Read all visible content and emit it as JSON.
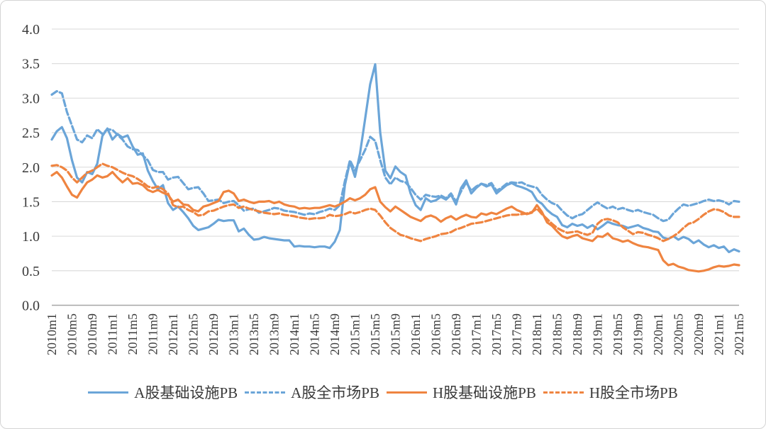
{
  "chart_data": {
    "type": "line",
    "title": "",
    "xlabel": "",
    "ylabel": "",
    "grid": true,
    "legend_position": "bottom",
    "x_tick_every": 4,
    "y_axis": {
      "min": 0.0,
      "max": 4.0,
      "step": 0.5
    },
    "y_tick_labels": [
      "0.0",
      "0.5",
      "1.0",
      "1.5",
      "2.0",
      "2.5",
      "3.0",
      "3.5",
      "4.0"
    ],
    "visible_x_ticks": [
      "2010m1",
      "2010m5",
      "2010m9",
      "2011m1",
      "2011m5",
      "2011m9",
      "2012m1",
      "2012m5",
      "2012m9",
      "2013m1",
      "2013m5",
      "2013m9",
      "2014m1",
      "2014m5",
      "2014m9",
      "2015m1",
      "2015m5",
      "2015m9",
      "2016m1",
      "2016m5",
      "2016m9",
      "2017m1",
      "2017m5",
      "2017m9",
      "2018m1",
      "2018m5",
      "2018m9",
      "2019m1",
      "2019m5",
      "2019m9",
      "2020m1",
      "2020m5",
      "2020m9",
      "2021m1",
      "2021m5"
    ],
    "categories": [
      "2010m1",
      "2010m2",
      "2010m3",
      "2010m4",
      "2010m5",
      "2010m6",
      "2010m7",
      "2010m8",
      "2010m9",
      "2010m10",
      "2010m11",
      "2010m12",
      "2011m1",
      "2011m2",
      "2011m3",
      "2011m4",
      "2011m5",
      "2011m6",
      "2011m7",
      "2011m8",
      "2011m9",
      "2011m10",
      "2011m11",
      "2011m12",
      "2012m1",
      "2012m2",
      "2012m3",
      "2012m4",
      "2012m5",
      "2012m6",
      "2012m7",
      "2012m8",
      "2012m9",
      "2012m10",
      "2012m11",
      "2012m12",
      "2013m1",
      "2013m2",
      "2013m3",
      "2013m4",
      "2013m5",
      "2013m6",
      "2013m7",
      "2013m8",
      "2013m9",
      "2013m10",
      "2013m11",
      "2013m12",
      "2014m1",
      "2014m2",
      "2014m3",
      "2014m4",
      "2014m5",
      "2014m6",
      "2014m7",
      "2014m8",
      "2014m9",
      "2014m10",
      "2014m11",
      "2014m12",
      "2015m1",
      "2015m2",
      "2015m3",
      "2015m4",
      "2015m5",
      "2015m6",
      "2015m7",
      "2015m8",
      "2015m9",
      "2015m10",
      "2015m11",
      "2015m12",
      "2016m1",
      "2016m2",
      "2016m3",
      "2016m4",
      "2016m5",
      "2016m6",
      "2016m7",
      "2016m8",
      "2016m9",
      "2016m10",
      "2016m11",
      "2016m12",
      "2017m1",
      "2017m2",
      "2017m3",
      "2017m4",
      "2017m5",
      "2017m6",
      "2017m7",
      "2017m8",
      "2017m9",
      "2017m10",
      "2017m11",
      "2017m12",
      "2018m1",
      "2018m2",
      "2018m3",
      "2018m4",
      "2018m5",
      "2018m6",
      "2018m7",
      "2018m8",
      "2018m9",
      "2018m10",
      "2018m11",
      "2018m12",
      "2019m1",
      "2019m2",
      "2019m3",
      "2019m4",
      "2019m5",
      "2019m6",
      "2019m7",
      "2019m8",
      "2019m9",
      "2019m10",
      "2019m11",
      "2019m12",
      "2020m1",
      "2020m2",
      "2020m3",
      "2020m4",
      "2020m5",
      "2020m6",
      "2020m7",
      "2020m8",
      "2020m9",
      "2020m10",
      "2020m11",
      "2020m12",
      "2021m1",
      "2021m2",
      "2021m3",
      "2021m4",
      "2021m5"
    ],
    "series": [
      {
        "name": "A股基础设施PB",
        "color": "#6BA5D8",
        "dash": "solid",
        "values": [
          2.4,
          2.52,
          2.58,
          2.42,
          2.1,
          1.85,
          1.78,
          1.93,
          1.9,
          2.05,
          2.45,
          2.56,
          2.4,
          2.48,
          2.43,
          2.46,
          2.3,
          2.18,
          2.2,
          1.95,
          1.8,
          1.68,
          1.74,
          1.48,
          1.38,
          1.43,
          1.35,
          1.26,
          1.15,
          1.09,
          1.11,
          1.13,
          1.18,
          1.24,
          1.22,
          1.23,
          1.23,
          1.07,
          1.11,
          1.02,
          0.95,
          0.96,
          0.99,
          0.97,
          0.96,
          0.95,
          0.94,
          0.94,
          0.85,
          0.86,
          0.85,
          0.85,
          0.84,
          0.85,
          0.85,
          0.83,
          0.92,
          1.09,
          1.74,
          2.08,
          1.86,
          2.2,
          2.7,
          3.2,
          3.49,
          2.5,
          1.95,
          1.84,
          2.01,
          1.93,
          1.88,
          1.62,
          1.45,
          1.38,
          1.55,
          1.5,
          1.52,
          1.57,
          1.53,
          1.6,
          1.46,
          1.7,
          1.81,
          1.62,
          1.7,
          1.76,
          1.72,
          1.75,
          1.62,
          1.68,
          1.74,
          1.77,
          1.73,
          1.71,
          1.68,
          1.64,
          1.52,
          1.47,
          1.38,
          1.32,
          1.28,
          1.16,
          1.13,
          1.18,
          1.15,
          1.17,
          1.12,
          1.16,
          1.1,
          1.15,
          1.21,
          1.18,
          1.16,
          1.15,
          1.12,
          1.14,
          1.16,
          1.12,
          1.1,
          1.07,
          1.06,
          0.98,
          0.96,
          1.0,
          0.95,
          0.99,
          0.96,
          0.9,
          0.94,
          0.88,
          0.84,
          0.87,
          0.83,
          0.85,
          0.77,
          0.81,
          0.78
        ]
      },
      {
        "name": "A股全市场PB",
        "color": "#6BA5D8",
        "dash": "dashed",
        "values": [
          3.05,
          3.1,
          3.07,
          2.8,
          2.6,
          2.4,
          2.36,
          2.46,
          2.42,
          2.55,
          2.48,
          2.55,
          2.54,
          2.47,
          2.4,
          2.3,
          2.26,
          2.25,
          2.17,
          2.1,
          1.96,
          1.93,
          1.93,
          1.82,
          1.85,
          1.86,
          1.77,
          1.68,
          1.7,
          1.71,
          1.62,
          1.51,
          1.52,
          1.53,
          1.48,
          1.5,
          1.51,
          1.45,
          1.37,
          1.39,
          1.4,
          1.34,
          1.36,
          1.38,
          1.41,
          1.4,
          1.37,
          1.36,
          1.35,
          1.33,
          1.31,
          1.33,
          1.32,
          1.35,
          1.37,
          1.4,
          1.38,
          1.45,
          1.8,
          2.1,
          1.95,
          2.1,
          2.25,
          2.44,
          2.38,
          2.1,
          1.85,
          1.75,
          1.85,
          1.8,
          1.78,
          1.7,
          1.6,
          1.53,
          1.6,
          1.58,
          1.57,
          1.59,
          1.55,
          1.62,
          1.5,
          1.65,
          1.78,
          1.66,
          1.72,
          1.76,
          1.74,
          1.77,
          1.66,
          1.7,
          1.76,
          1.78,
          1.77,
          1.78,
          1.74,
          1.72,
          1.7,
          1.6,
          1.53,
          1.48,
          1.45,
          1.37,
          1.3,
          1.26,
          1.3,
          1.32,
          1.38,
          1.44,
          1.49,
          1.44,
          1.4,
          1.43,
          1.39,
          1.41,
          1.38,
          1.36,
          1.38,
          1.35,
          1.33,
          1.31,
          1.26,
          1.22,
          1.24,
          1.33,
          1.4,
          1.46,
          1.44,
          1.46,
          1.48,
          1.51,
          1.53,
          1.51,
          1.52,
          1.5,
          1.46,
          1.51,
          1.5
        ]
      },
      {
        "name": "H股基础设施PB",
        "color": "#EF8440",
        "dash": "solid",
        "values": [
          1.88,
          1.93,
          1.85,
          1.72,
          1.6,
          1.56,
          1.68,
          1.78,
          1.82,
          1.88,
          1.85,
          1.87,
          1.93,
          1.85,
          1.78,
          1.84,
          1.76,
          1.77,
          1.74,
          1.67,
          1.64,
          1.67,
          1.63,
          1.6,
          1.5,
          1.53,
          1.46,
          1.45,
          1.38,
          1.36,
          1.43,
          1.45,
          1.48,
          1.51,
          1.64,
          1.66,
          1.62,
          1.51,
          1.53,
          1.5,
          1.48,
          1.5,
          1.5,
          1.51,
          1.48,
          1.5,
          1.46,
          1.44,
          1.43,
          1.4,
          1.41,
          1.4,
          1.41,
          1.41,
          1.43,
          1.45,
          1.43,
          1.46,
          1.5,
          1.55,
          1.52,
          1.55,
          1.6,
          1.68,
          1.71,
          1.5,
          1.42,
          1.36,
          1.43,
          1.38,
          1.33,
          1.28,
          1.25,
          1.22,
          1.28,
          1.3,
          1.27,
          1.21,
          1.26,
          1.29,
          1.24,
          1.28,
          1.31,
          1.28,
          1.27,
          1.33,
          1.31,
          1.34,
          1.32,
          1.36,
          1.4,
          1.43,
          1.38,
          1.35,
          1.32,
          1.34,
          1.45,
          1.35,
          1.2,
          1.15,
          1.07,
          1.0,
          0.97,
          1.0,
          1.02,
          0.97,
          0.95,
          0.93,
          1.0,
          0.99,
          1.04,
          0.97,
          0.95,
          0.92,
          0.94,
          0.9,
          0.87,
          0.85,
          0.84,
          0.82,
          0.8,
          0.65,
          0.58,
          0.6,
          0.56,
          0.54,
          0.51,
          0.5,
          0.49,
          0.5,
          0.52,
          0.55,
          0.57,
          0.56,
          0.57,
          0.59,
          0.58
        ]
      },
      {
        "name": "H股全市场PB",
        "color": "#EF8440",
        "dash": "dashed",
        "values": [
          2.02,
          2.03,
          2.0,
          1.95,
          1.85,
          1.78,
          1.85,
          1.92,
          1.95,
          2.0,
          2.05,
          2.02,
          2.0,
          1.96,
          1.92,
          1.89,
          1.87,
          1.83,
          1.78,
          1.72,
          1.7,
          1.72,
          1.68,
          1.62,
          1.45,
          1.42,
          1.43,
          1.38,
          1.35,
          1.3,
          1.31,
          1.36,
          1.37,
          1.4,
          1.43,
          1.45,
          1.46,
          1.41,
          1.43,
          1.4,
          1.38,
          1.36,
          1.34,
          1.33,
          1.32,
          1.33,
          1.31,
          1.3,
          1.29,
          1.27,
          1.26,
          1.25,
          1.26,
          1.26,
          1.27,
          1.31,
          1.29,
          1.3,
          1.32,
          1.35,
          1.33,
          1.35,
          1.38,
          1.4,
          1.38,
          1.3,
          1.2,
          1.12,
          1.07,
          1.02,
          1.0,
          0.97,
          0.95,
          0.93,
          0.96,
          0.98,
          1.0,
          1.03,
          1.04,
          1.06,
          1.1,
          1.12,
          1.15,
          1.18,
          1.19,
          1.2,
          1.22,
          1.24,
          1.26,
          1.28,
          1.3,
          1.31,
          1.31,
          1.32,
          1.33,
          1.35,
          1.4,
          1.32,
          1.25,
          1.18,
          1.12,
          1.08,
          1.05,
          1.06,
          1.07,
          1.04,
          1.02,
          1.05,
          1.18,
          1.24,
          1.25,
          1.23,
          1.2,
          1.13,
          1.08,
          1.03,
          1.06,
          1.05,
          1.02,
          1.0,
          0.97,
          0.93,
          0.96,
          1.0,
          1.05,
          1.12,
          1.18,
          1.2,
          1.25,
          1.31,
          1.36,
          1.39,
          1.38,
          1.35,
          1.3,
          1.28,
          1.28
        ]
      }
    ],
    "style": {
      "gridline_color": "#d9d9d9",
      "axis_line_color": "#a6a6a6",
      "tick_label_color": "#3a3a3a",
      "line_width": 3.2,
      "dash_pattern": "9 4"
    }
  }
}
